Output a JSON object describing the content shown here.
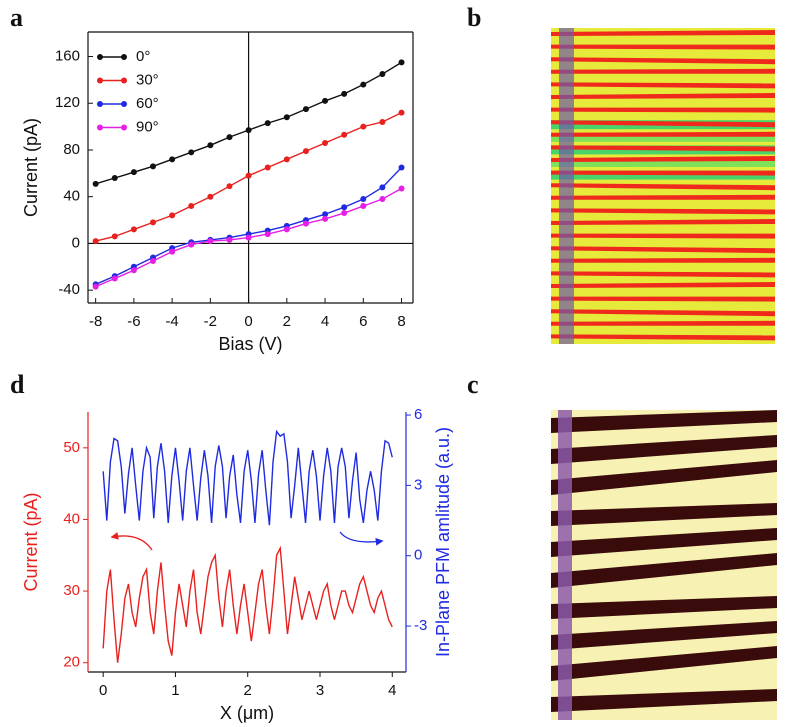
{
  "panel_labels": [
    "a",
    "b",
    "c",
    "d"
  ],
  "chart_data": [
    {
      "type": "line",
      "markers": true,
      "zero_lines": true,
      "legend": "upper left",
      "xlabel": "Bias (V)",
      "ylabel": "Current (pA)",
      "x": [
        -8,
        -7,
        -6,
        -5,
        -4,
        -3,
        -2,
        -1,
        0,
        1,
        2,
        3,
        4,
        5,
        6,
        7,
        8
      ],
      "series": [
        {
          "name": "0°",
          "color": "#111111",
          "values": [
            51,
            56,
            61,
            66,
            72,
            78,
            84,
            91,
            97,
            103,
            108,
            115,
            122,
            128,
            136,
            145,
            155
          ]
        },
        {
          "name": "30°",
          "color": "#e8211f",
          "values": [
            2,
            6,
            12,
            18,
            24,
            32,
            40,
            49,
            58,
            65,
            72,
            79,
            86,
            93,
            100,
            104,
            112
          ]
        },
        {
          "name": "60°",
          "color": "#1f2be0",
          "values": [
            -35,
            -28,
            -20,
            -12,
            -4,
            1,
            3,
            5,
            8,
            11,
            15,
            20,
            25,
            31,
            38,
            48,
            65
          ]
        },
        {
          "name": "90°",
          "color": "#e61ee6",
          "values": [
            -37,
            -30,
            -23,
            -15,
            -7,
            -1,
            2,
            3,
            5,
            8,
            12,
            17,
            21,
            26,
            32,
            38,
            47
          ]
        }
      ],
      "xlim": [
        -8.4,
        8.6
      ],
      "ylim": [
        -51,
        181
      ],
      "xticks": [
        -8,
        -6,
        -4,
        -2,
        0,
        2,
        4,
        6,
        8
      ],
      "yticks": [
        -40,
        0,
        40,
        80,
        120,
        160
      ]
    },
    {
      "type": "line",
      "markers": false,
      "xlabel": "X (μm)",
      "ylabel": "Current (pA)",
      "y2label": "In-Plane PFM amlitude (a.u.)",
      "x": [
        0,
        0.05,
        0.1,
        0.15,
        0.2,
        0.25,
        0.3,
        0.35,
        0.4,
        0.45,
        0.5,
        0.55,
        0.6,
        0.65,
        0.7,
        0.75,
        0.8,
        0.85,
        0.9,
        0.95,
        1,
        1.05,
        1.1,
        1.15,
        1.2,
        1.25,
        1.3,
        1.35,
        1.4,
        1.45,
        1.5,
        1.55,
        1.6,
        1.65,
        1.7,
        1.75,
        1.8,
        1.85,
        1.9,
        1.95,
        2,
        2.05,
        2.1,
        2.15,
        2.2,
        2.25,
        2.3,
        2.35,
        2.4,
        2.45,
        2.5,
        2.55,
        2.6,
        2.65,
        2.7,
        2.75,
        2.8,
        2.85,
        2.9,
        2.95,
        3,
        3.05,
        3.1,
        3.15,
        3.2,
        3.25,
        3.3,
        3.35,
        3.4,
        3.45,
        3.5,
        3.55,
        3.6,
        3.65,
        3.7,
        3.75,
        3.8,
        3.85,
        3.9,
        3.95,
        4
      ],
      "series": [
        {
          "color": "#e8211f",
          "values": [
            22,
            30,
            33,
            26,
            20,
            24,
            29,
            31,
            27,
            25,
            29,
            32,
            33,
            27,
            24,
            30,
            34,
            28,
            23,
            21,
            27,
            31,
            28,
            25,
            30,
            33,
            27,
            24,
            28,
            32,
            34,
            35,
            29,
            25,
            30,
            33,
            28,
            24,
            28,
            31,
            27,
            23,
            27,
            31,
            33,
            28,
            24,
            29,
            35,
            36,
            30,
            24,
            28,
            32,
            29,
            26,
            28,
            30,
            28,
            26,
            28,
            30,
            31,
            28,
            26,
            28,
            30,
            30,
            28,
            27,
            29,
            31,
            32,
            30,
            28,
            27,
            29,
            30,
            28,
            26,
            25
          ]
        },
        {
          "color": "#1f2be0",
          "axis": "y2",
          "values": [
            3.6,
            1.5,
            4.0,
            5.0,
            4.9,
            3.8,
            1.8,
            3.5,
            4.6,
            3.0,
            1.5,
            3.6,
            4.6,
            4.2,
            1.6,
            3.8,
            4.8,
            3.6,
            1.4,
            3.4,
            4.6,
            3.2,
            1.5,
            3.6,
            4.6,
            3.0,
            1.5,
            3.3,
            4.5,
            3.4,
            1.4,
            3.8,
            4.7,
            3.8,
            1.6,
            3.4,
            4.3,
            2.6,
            1.4,
            3.6,
            4.5,
            3.2,
            1.4,
            3.5,
            4.5,
            2.8,
            1.3,
            4.0,
            5.3,
            5.1,
            5.2,
            4.0,
            1.6,
            3.0,
            4.6,
            3.0,
            1.4,
            3.6,
            4.5,
            3.4,
            1.5,
            3.4,
            4.6,
            3.6,
            1.4,
            3.8,
            4.6,
            3.8,
            1.6,
            3.2,
            4.4,
            2.4,
            1.4,
            2.8,
            3.6,
            2.8,
            1.5,
            3.6,
            4.9,
            4.8,
            4.2
          ]
        }
      ],
      "xlim": [
        -0.21,
        4.19
      ],
      "ylim": [
        18.7,
        55
      ],
      "y2lim": [
        -4.96,
        6.13
      ],
      "xticks": [
        0,
        1,
        2,
        3,
        4
      ],
      "yticks": [
        20,
        30,
        40,
        50
      ],
      "y2ticks": [
        -3,
        0,
        3,
        6
      ]
    }
  ]
}
